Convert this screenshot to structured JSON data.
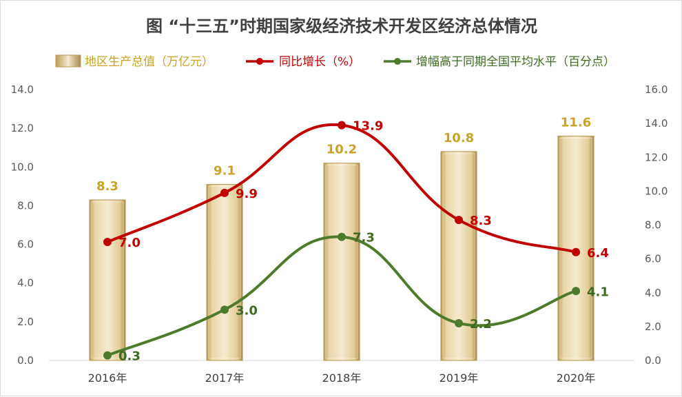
{
  "chart_data": {
    "type": "bar",
    "title": "图 “十三五”时期国家级经济技术开发区经济总体情况",
    "categories": [
      "2016年",
      "2017年",
      "2018年",
      "2019年",
      "2020年"
    ],
    "series": [
      {
        "name": "地区生产总值（万亿元）",
        "type": "bar",
        "axis": "left",
        "values": [
          8.3,
          9.1,
          10.2,
          10.8,
          11.6
        ],
        "color": "#d8bf7c",
        "label_color": "#c9a227"
      },
      {
        "name": "同比增长（%）",
        "type": "line",
        "axis": "right",
        "values": [
          7.0,
          9.9,
          13.9,
          8.3,
          6.4
        ],
        "color": "#c00000",
        "label_color": "#c00000"
      },
      {
        "name": "增幅高于同期全国平均水平（百分点）",
        "type": "line",
        "axis": "right",
        "values": [
          0.3,
          3.0,
          7.3,
          2.2,
          4.1
        ],
        "color": "#4e7a2c",
        "label_color": "#3f6a24"
      }
    ],
    "y_left": {
      "min": 0,
      "max": 14,
      "step": 2,
      "ticks": [
        "0.0",
        "2.0",
        "4.0",
        "6.0",
        "8.0",
        "10.0",
        "12.0",
        "14.0"
      ]
    },
    "y_right": {
      "min": 0,
      "max": 16,
      "step": 2,
      "ticks": [
        "0.0",
        "2.0",
        "4.0",
        "6.0",
        "8.0",
        "10.0",
        "12.0",
        "14.0",
        "16.0"
      ]
    },
    "grid": false,
    "legend_position": "top",
    "bar_labels": [
      "8.3",
      "9.1",
      "10.2",
      "10.8",
      "11.6"
    ],
    "growth_labels": [
      "7.0",
      "9.9",
      "13.9",
      "8.3",
      "6.4"
    ],
    "above_avg_labels": [
      "0.3",
      "3.0",
      "7.3",
      "2.2",
      "4.1"
    ]
  }
}
